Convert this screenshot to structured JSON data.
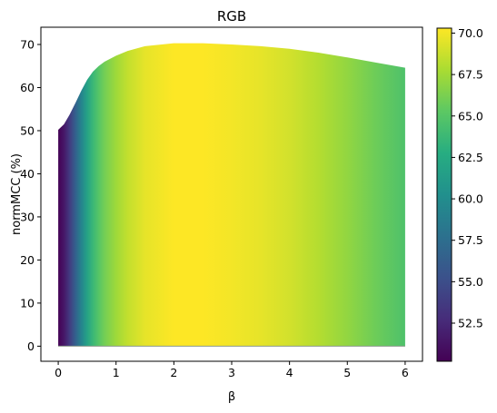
{
  "chart_data": {
    "type": "area",
    "title": "RGB",
    "xlabel": "β",
    "ylabel": "normMCC (%)",
    "xlim": [
      -0.3,
      6.3
    ],
    "ylim": [
      -3.5,
      74
    ],
    "x_ticks": [
      "0",
      "1",
      "2",
      "3",
      "4",
      "5",
      "6"
    ],
    "y_ticks": [
      "0",
      "10",
      "20",
      "30",
      "40",
      "50",
      "60",
      "70"
    ],
    "x": [
      0,
      0.1,
      0.2,
      0.3,
      0.4,
      0.5,
      0.6,
      0.7,
      0.8,
      1.0,
      1.2,
      1.5,
      2.0,
      2.5,
      3.0,
      3.5,
      4.0,
      4.5,
      5.0,
      5.5,
      6.0
    ],
    "values": [
      50.2,
      51.5,
      53.8,
      56.5,
      59.3,
      61.8,
      63.7,
      65.0,
      66.0,
      67.4,
      68.5,
      69.6,
      70.3,
      70.3,
      70.0,
      69.6,
      69.0,
      68.1,
      67.0,
      65.8,
      64.6
    ],
    "baseline": 0,
    "fill": "gradient by normMCC value (viridis colormap)",
    "colorbar": {
      "range": [
        50.2,
        70.3
      ],
      "ticks": [
        "52.5",
        "55.0",
        "57.5",
        "60.0",
        "62.5",
        "65.0",
        "67.5",
        "70.0"
      ],
      "tick_values": [
        52.5,
        55.0,
        57.5,
        60.0,
        62.5,
        65.0,
        67.5,
        70.0
      ]
    },
    "grid": false,
    "legend": "none"
  }
}
